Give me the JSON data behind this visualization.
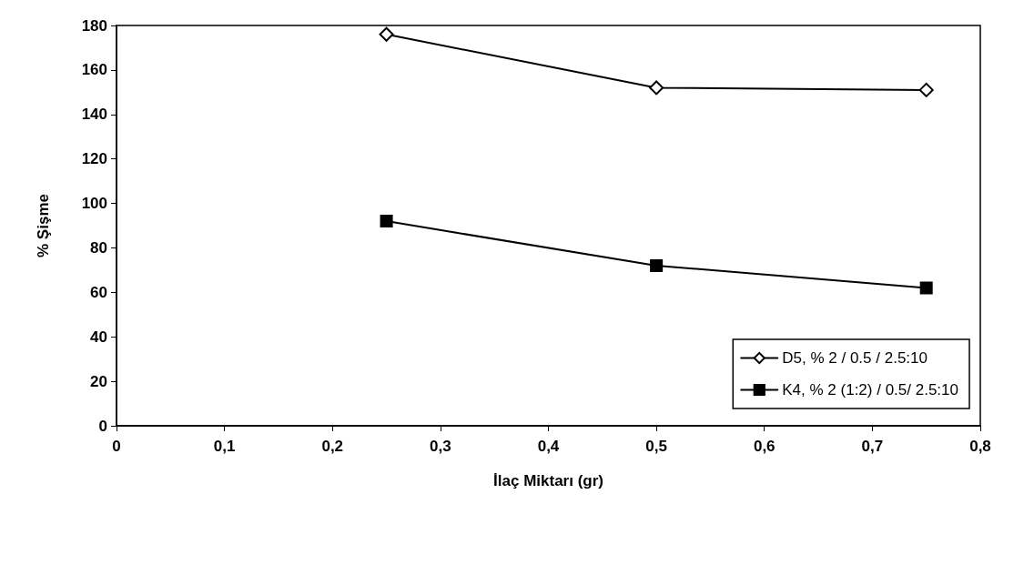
{
  "chart_data": {
    "type": "line",
    "xlabel": "İlaç Miktarı (gr)",
    "ylabel": "% Şişme",
    "x": [
      0.25,
      0.5,
      0.75
    ],
    "series": [
      {
        "name": "D5, % 2 / 0.5 / 2.5:10",
        "color": "#000000",
        "values": [
          176,
          152,
          151
        ],
        "marker": "diamond"
      },
      {
        "name": "K4, % 2 (1:2) / 0.5/ 2.5:10",
        "color": "#000000",
        "values": [
          92,
          72,
          62
        ],
        "marker": "square"
      }
    ],
    "xlim": [
      0,
      0.8
    ],
    "xticks": [
      0,
      {
        "value": 0.1,
        "label": "0,1"
      },
      {
        "value": 0.2,
        "label": "0,2"
      },
      {
        "value": 0.3,
        "label": "0,3"
      },
      {
        "value": 0.4,
        "label": "0,4"
      },
      {
        "value": 0.5,
        "label": "0,5"
      },
      {
        "value": 0.6,
        "label": "0,6"
      },
      {
        "value": 0.7,
        "label": "0,7"
      },
      {
        "value": 0.8,
        "label": "0,8"
      }
    ],
    "ylim": [
      0,
      180
    ],
    "yticks": [
      0,
      20,
      40,
      60,
      80,
      100,
      120,
      140,
      160,
      180
    ],
    "grid": false,
    "legend": "bottom right",
    "line_style": "solid"
  }
}
